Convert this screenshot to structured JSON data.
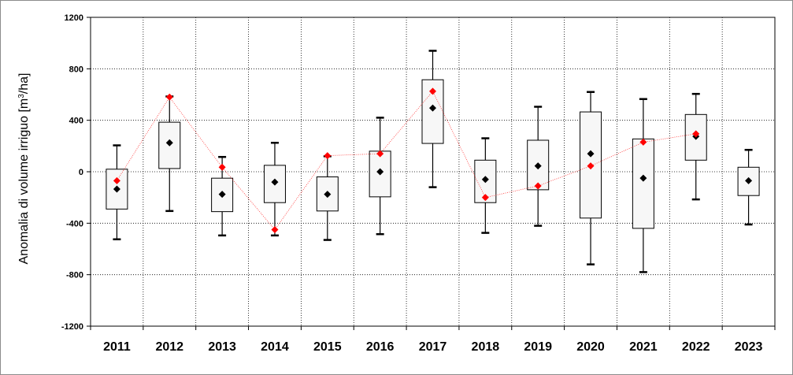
{
  "chart_data": {
    "type": "box",
    "ylabel": "Anomalia di volume irriguo [m³/ha]",
    "ylabel_parts": {
      "before": "Anomalia di volume irriguo [m",
      "sup": "3",
      "after": "/ha]"
    },
    "ylim": [
      -1200,
      1200
    ],
    "yticks": [
      -1200,
      -800,
      -400,
      0,
      400,
      800,
      1200
    ],
    "grid": true,
    "categories": [
      "2011",
      "2012",
      "2013",
      "2014",
      "2015",
      "2016",
      "2017",
      "2018",
      "2019",
      "2020",
      "2021",
      "2022",
      "2023"
    ],
    "boxes": [
      {
        "min": -525,
        "q1": -290,
        "q3": 20,
        "max": 205
      },
      {
        "min": -305,
        "q1": 25,
        "q3": 385,
        "max": 585
      },
      {
        "min": -495,
        "q1": -310,
        "q3": -50,
        "max": 115
      },
      {
        "min": -495,
        "q1": -240,
        "q3": 50,
        "max": 225
      },
      {
        "min": -530,
        "q1": -305,
        "q3": -40,
        "max": 120
      },
      {
        "min": -485,
        "q1": -195,
        "q3": 160,
        "max": 420
      },
      {
        "min": -120,
        "q1": 220,
        "q3": 715,
        "max": 940
      },
      {
        "min": -475,
        "q1": -240,
        "q3": 90,
        "max": 260
      },
      {
        "min": -420,
        "q1": -140,
        "q3": 245,
        "max": 505
      },
      {
        "min": -720,
        "q1": -360,
        "q3": 465,
        "max": 620
      },
      {
        "min": -780,
        "q1": -440,
        "q3": 255,
        "max": 565
      },
      {
        "min": -215,
        "q1": 90,
        "q3": 445,
        "max": 605
      },
      {
        "min": -410,
        "q1": -185,
        "q3": 35,
        "max": 170
      }
    ],
    "series": [
      {
        "marker": "diamond",
        "color": "#000000",
        "values": [
          -135,
          225,
          -175,
          -80,
          -175,
          0,
          495,
          -60,
          45,
          140,
          -50,
          275,
          -70
        ]
      },
      {
        "marker": "diamond",
        "color": "#ff0000",
        "line": "dotted",
        "values": [
          -70,
          580,
          35,
          -450,
          125,
          140,
          625,
          -200,
          -110,
          45,
          230,
          295,
          null
        ]
      }
    ]
  }
}
